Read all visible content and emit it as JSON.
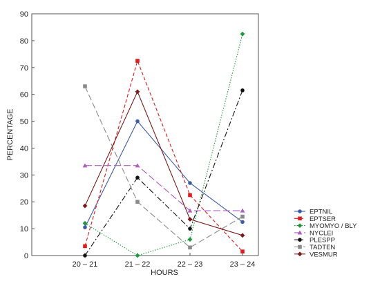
{
  "chart_data": {
    "type": "line",
    "xlabel": "HOURS",
    "ylabel": "PERCENTAGE",
    "categories": [
      "20 – 21",
      "21 – 22",
      "22 – 23",
      "23 – 24"
    ],
    "ylim": [
      0,
      90
    ],
    "yticks": [
      0,
      10,
      20,
      30,
      40,
      50,
      60,
      70,
      80,
      90
    ],
    "grid": false,
    "legend_position": "right",
    "series": [
      {
        "name": "EPTNIL",
        "values": [
          10.5,
          50,
          27,
          12.5
        ],
        "color": "#3a5ba8",
        "dash": "",
        "marker": "circle"
      },
      {
        "name": "EPTSER",
        "values": [
          3.5,
          72.5,
          22.5,
          1.5
        ],
        "color": "#e01a1a",
        "dash": "5,3",
        "marker": "square"
      },
      {
        "name": "MYOMYO / BLY",
        "values": [
          12,
          0,
          6,
          82.5
        ],
        "color": "#1a9a3a",
        "dash": "1.5,2",
        "marker": "diamond"
      },
      {
        "name": "NYCLEI",
        "values": [
          33.5,
          33.5,
          16.7,
          16.7
        ],
        "color": "#b05cc4",
        "dash": "10,4",
        "marker": "triangle"
      },
      {
        "name": "PLESPP",
        "values": [
          0,
          29,
          10,
          61.5
        ],
        "color": "#111111",
        "dash": "8,3,2,3",
        "marker": "circle"
      },
      {
        "name": "TADTEN",
        "values": [
          63,
          20,
          3,
          14.5
        ],
        "color": "#8a8a8a",
        "dash": "9,4",
        "marker": "square"
      },
      {
        "name": "VESMUR",
        "values": [
          18.5,
          61,
          13.5,
          7.5
        ],
        "color": "#7a1a1a",
        "dash": "",
        "marker": "diamond"
      }
    ]
  }
}
